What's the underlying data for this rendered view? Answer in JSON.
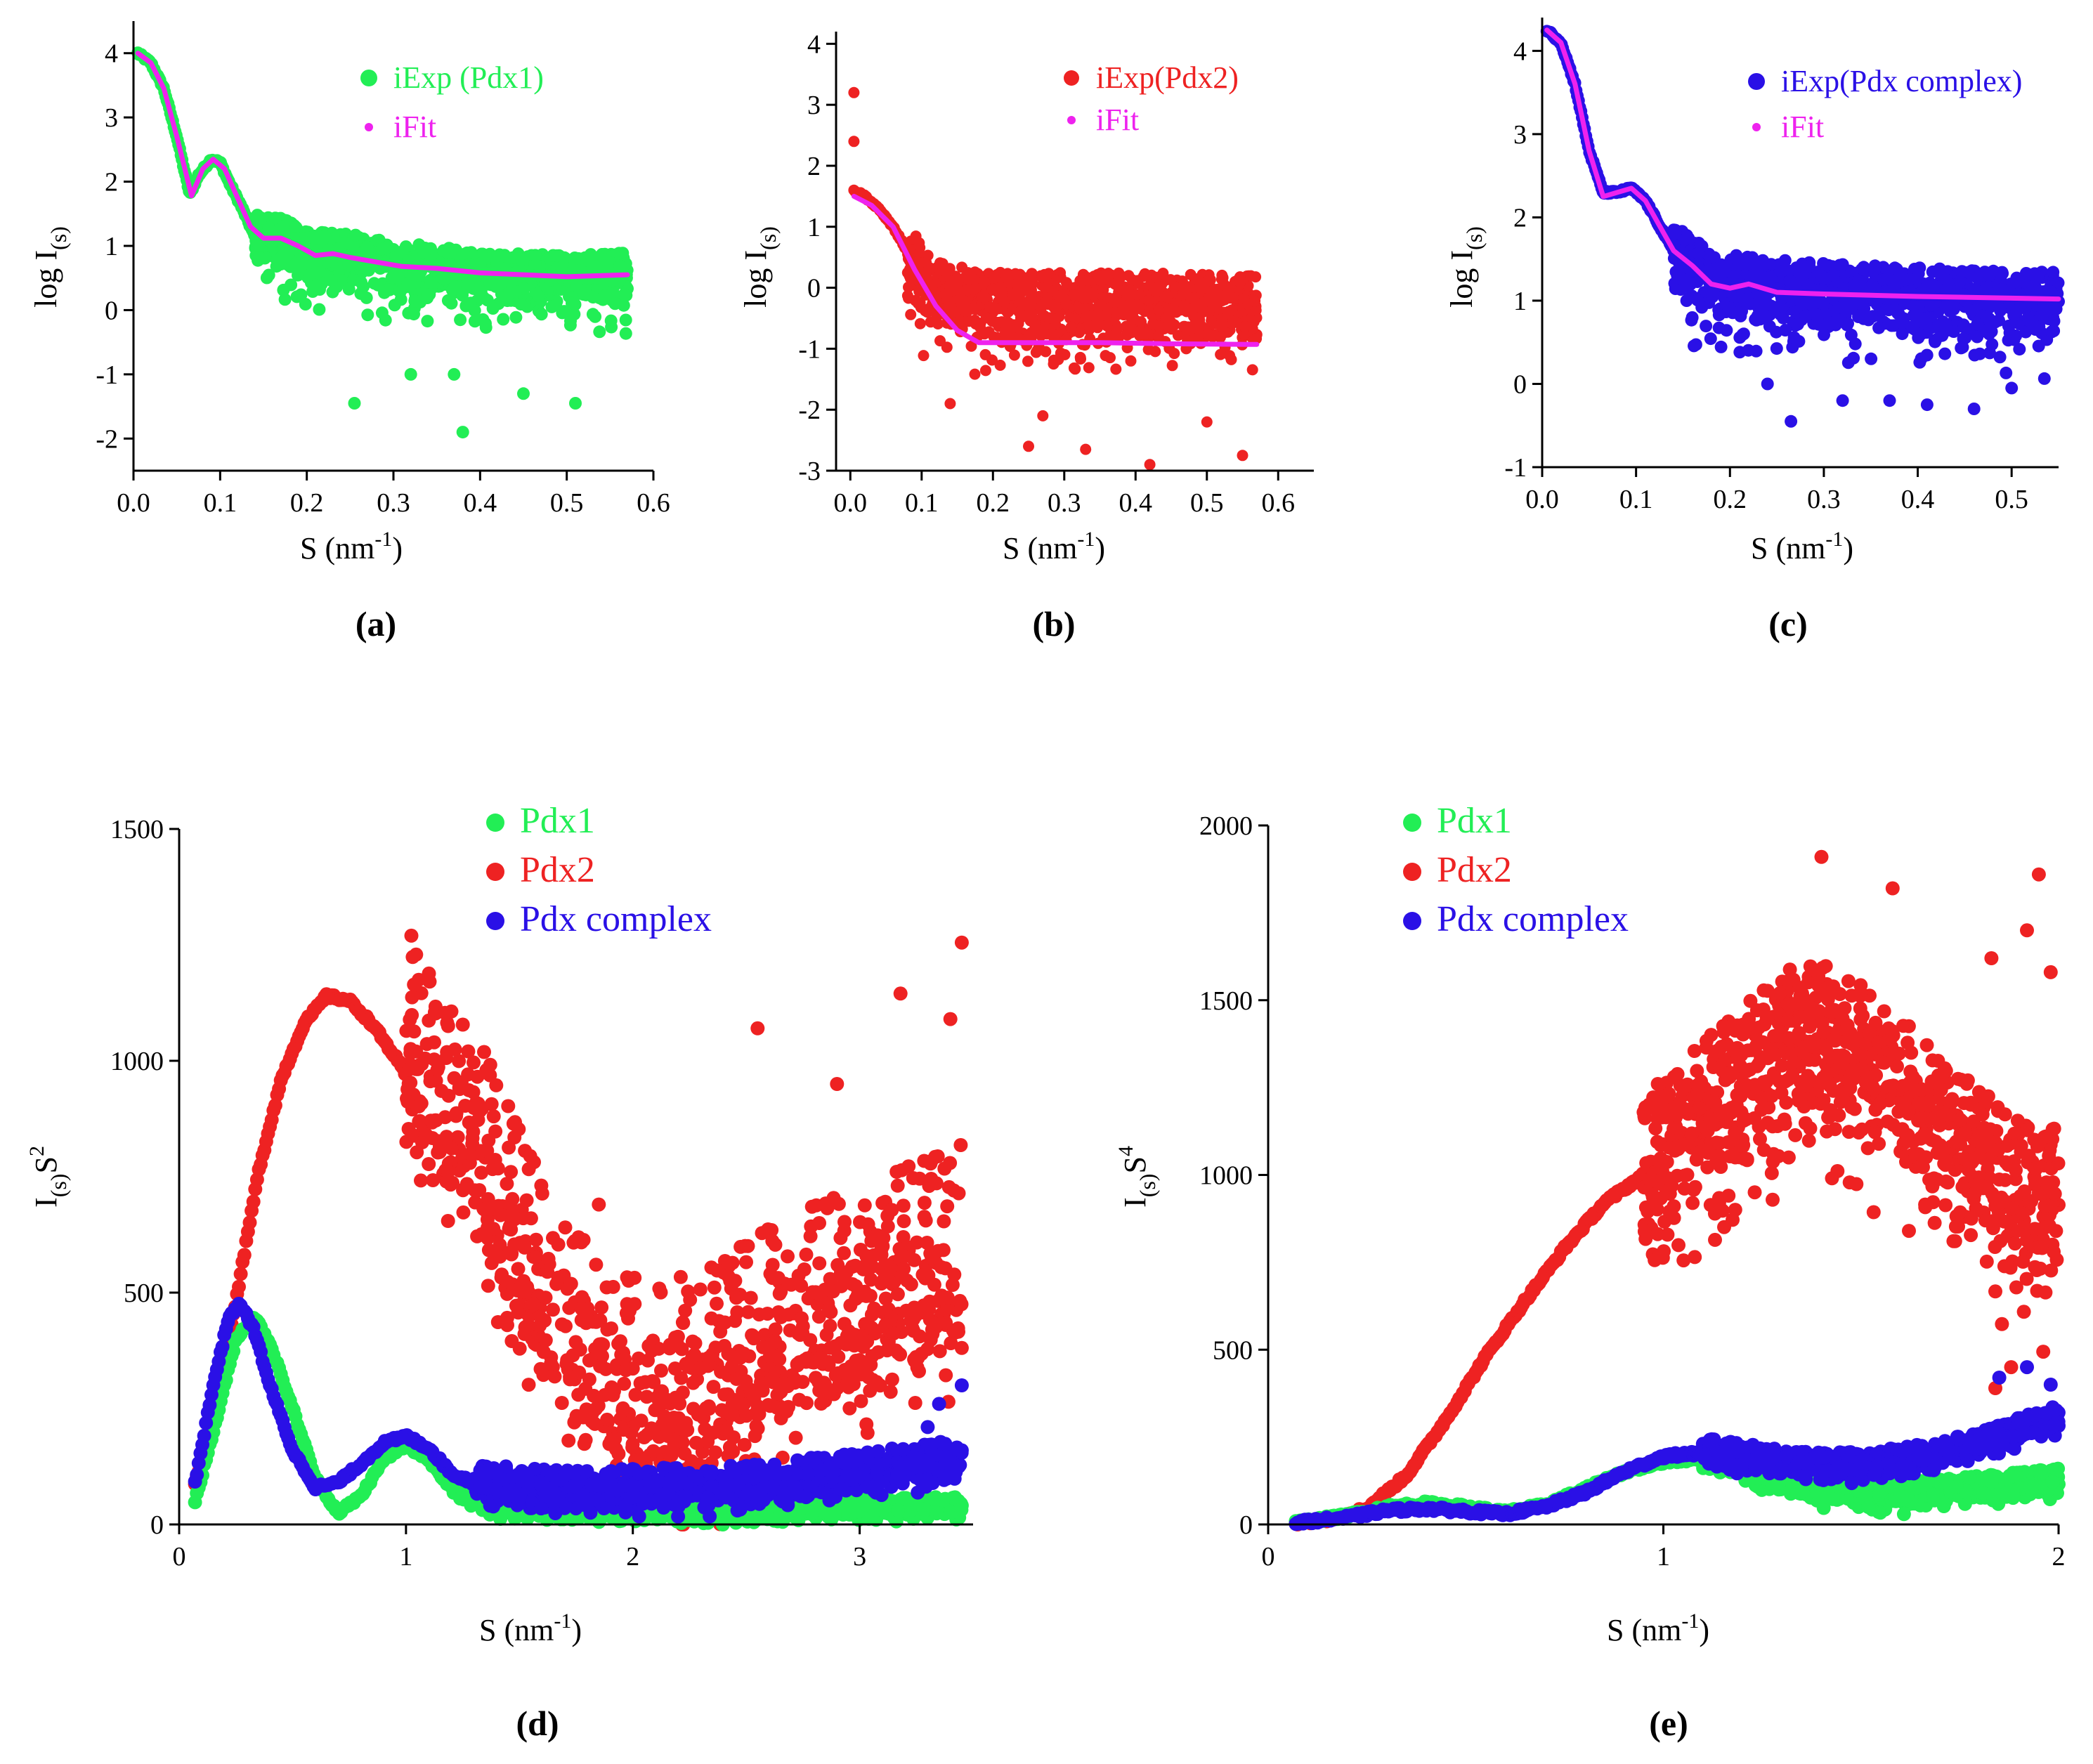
{
  "colors": {
    "pdx1": "#22ee55",
    "pdx2": "#ee2222",
    "complex": "#2a10e6",
    "fit": "#ee22ee"
  },
  "chart_data": [
    {
      "id": "a",
      "type": "scatter",
      "panel_label": "(a)",
      "xlabel": "S (nm",
      "xlabel_sup": "-1",
      "xlabel_close": ")",
      "ylabel": "log I",
      "ylabel_sub": "(s)",
      "xlim": [
        0.0,
        0.6
      ],
      "ylim": [
        -2.5,
        4.5
      ],
      "xticks": [
        0.0,
        0.1,
        0.2,
        0.3,
        0.4,
        0.5,
        0.6
      ],
      "xtick_labels": [
        "0.0",
        "0.1",
        "0.2",
        "0.3",
        "0.4",
        "0.5",
        "0.6"
      ],
      "yticks": [
        -2,
        -1,
        0,
        1,
        2,
        3,
        4
      ],
      "ytick_labels": [
        "-2",
        "-1",
        "0",
        "1",
        "2",
        "3",
        "4"
      ],
      "legend": [
        "iExp (Pdx1)",
        "iFit"
      ],
      "series": [
        {
          "name": "iExp (Pdx1)",
          "color_key": "pdx1",
          "kind": "points",
          "x": [
            0.005,
            0.02,
            0.035,
            0.05,
            0.065,
            0.075,
            0.09,
            0.1,
            0.11,
            0.125,
            0.14,
            0.155,
            0.17,
            0.185,
            0.2,
            0.25,
            0.3,
            0.35,
            0.4,
            0.45,
            0.5,
            0.57
          ],
          "y": [
            4.0,
            3.85,
            3.45,
            2.7,
            1.8,
            2.1,
            2.35,
            2.3,
            2.0,
            1.6,
            1.15,
            1.1,
            1.1,
            1.0,
            0.9,
            0.85,
            0.7,
            0.65,
            0.55,
            0.55,
            0.5,
            0.55
          ],
          "noise": {
            "x_start": 0.14,
            "x_end": 0.57,
            "spread_hi": 0.35,
            "spread_lo": 0.7,
            "outliers": [
              [
                0.255,
                -1.45
              ],
              [
                0.38,
                -1.9
              ],
              [
                0.51,
                -1.45
              ],
              [
                0.37,
                -1.0
              ],
              [
                0.45,
                -1.3
              ],
              [
                0.32,
                -1.0
              ]
            ]
          }
        },
        {
          "name": "iFit",
          "color_key": "fit",
          "kind": "line",
          "x": [
            0.005,
            0.02,
            0.035,
            0.05,
            0.067,
            0.08,
            0.092,
            0.105,
            0.12,
            0.135,
            0.15,
            0.17,
            0.19,
            0.21,
            0.23,
            0.25,
            0.28,
            0.31,
            0.35,
            0.4,
            0.45,
            0.5,
            0.57
          ],
          "y": [
            4.0,
            3.85,
            3.45,
            2.7,
            1.78,
            2.2,
            2.35,
            2.2,
            1.75,
            1.3,
            1.12,
            1.12,
            1.0,
            0.85,
            0.88,
            0.82,
            0.75,
            0.68,
            0.65,
            0.58,
            0.55,
            0.52,
            0.55
          ]
        }
      ]
    },
    {
      "id": "b",
      "type": "scatter",
      "panel_label": "(b)",
      "xlabel": "S (nm",
      "xlabel_sup": "-1",
      "xlabel_close": ")",
      "ylabel": "log I",
      "ylabel_sub": "(s)",
      "xlim": [
        -0.02,
        0.65
      ],
      "ylim": [
        -3.0,
        4.2
      ],
      "xticks": [
        0.0,
        0.1,
        0.2,
        0.3,
        0.4,
        0.5,
        0.6
      ],
      "xtick_labels": [
        "0.0",
        "0.1",
        "0.2",
        "0.3",
        "0.4",
        "0.5",
        "0.6"
      ],
      "yticks": [
        -3,
        -2,
        -1,
        0,
        1,
        2,
        3,
        4
      ],
      "ytick_labels": [
        "-3",
        "-2",
        "-1",
        "0",
        "1",
        "2",
        "3",
        "4"
      ],
      "legend": [
        "iExp(Pdx2)",
        "iFit"
      ],
      "series": [
        {
          "name": "iExp(Pdx2)",
          "color_key": "pdx2",
          "kind": "points",
          "x": [
            0.005,
            0.02,
            0.04,
            0.06,
            0.08,
            0.1,
            0.12,
            0.15,
            0.2,
            0.3,
            0.4,
            0.5,
            0.57
          ],
          "y": [
            1.6,
            1.5,
            1.3,
            1.0,
            0.6,
            0.1,
            -0.1,
            -0.2,
            -0.3,
            -0.3,
            -0.3,
            -0.3,
            -0.35
          ],
          "noise": {
            "x_start": 0.08,
            "x_end": 0.57,
            "spread_hi": 0.55,
            "spread_lo": 0.9,
            "outliers": [
              [
                0.005,
                3.2
              ],
              [
                0.005,
                2.4
              ],
              [
                0.25,
                -2.6
              ],
              [
                0.27,
                -2.1
              ],
              [
                0.33,
                -2.65
              ],
              [
                0.42,
                -2.9
              ],
              [
                0.55,
                -2.75
              ],
              [
                0.5,
                -2.2
              ],
              [
                0.14,
                -1.9
              ]
            ]
          }
        },
        {
          "name": "iFit",
          "color_key": "fit",
          "kind": "line",
          "x": [
            0.005,
            0.03,
            0.06,
            0.09,
            0.12,
            0.15,
            0.18,
            0.25,
            0.35,
            0.45,
            0.57
          ],
          "y": [
            1.5,
            1.35,
            1.0,
            0.3,
            -0.3,
            -0.7,
            -0.9,
            -0.9,
            -0.9,
            -0.92,
            -0.93
          ]
        }
      ]
    },
    {
      "id": "c",
      "type": "scatter",
      "panel_label": "(c)",
      "xlabel": "S (nm",
      "xlabel_sup": "-1",
      "xlabel_close": ")",
      "ylabel": "log I",
      "ylabel_sub": "(s)",
      "xlim": [
        0.0,
        0.55
      ],
      "ylim": [
        -1.0,
        4.4
      ],
      "xticks": [
        0.0,
        0.1,
        0.2,
        0.3,
        0.4,
        0.5
      ],
      "xtick_labels": [
        "0.0",
        "0.1",
        "0.2",
        "0.3",
        "0.4",
        "0.5"
      ],
      "yticks": [
        -1,
        0,
        1,
        2,
        3,
        4
      ],
      "ytick_labels": [
        "-1",
        "0",
        "1",
        "2",
        "3",
        "4"
      ],
      "legend": [
        "iExp(Pdx complex)",
        "iFit"
      ],
      "series": [
        {
          "name": "iExp(Pdx complex)",
          "color_key": "complex",
          "kind": "points",
          "x": [
            0.005,
            0.02,
            0.035,
            0.05,
            0.065,
            0.08,
            0.095,
            0.11,
            0.125,
            0.14,
            0.16,
            0.2,
            0.3,
            0.4,
            0.5,
            0.55
          ],
          "y": [
            4.25,
            4.1,
            3.6,
            2.8,
            2.3,
            2.3,
            2.35,
            2.2,
            1.9,
            1.6,
            1.4,
            1.2,
            1.1,
            1.05,
            1.0,
            1.0
          ],
          "noise": {
            "x_start": 0.14,
            "x_end": 0.55,
            "spread_hi": 0.35,
            "spread_lo": 0.7,
            "outliers": [
              [
                0.265,
                -0.45
              ],
              [
                0.32,
                -0.2
              ],
              [
                0.37,
                -0.2
              ],
              [
                0.41,
                -0.25
              ],
              [
                0.46,
                -0.3
              ],
              [
                0.5,
                -0.05
              ],
              [
                0.24,
                0.0
              ]
            ]
          }
        },
        {
          "name": "iFit",
          "color_key": "fit",
          "kind": "line",
          "x": [
            0.005,
            0.02,
            0.035,
            0.05,
            0.065,
            0.08,
            0.095,
            0.11,
            0.125,
            0.14,
            0.16,
            0.18,
            0.2,
            0.22,
            0.25,
            0.3,
            0.4,
            0.5,
            0.55
          ],
          "y": [
            4.25,
            4.1,
            3.6,
            2.8,
            2.25,
            2.3,
            2.35,
            2.2,
            1.9,
            1.6,
            1.42,
            1.2,
            1.15,
            1.2,
            1.1,
            1.08,
            1.05,
            1.03,
            1.02
          ]
        }
      ]
    },
    {
      "id": "d",
      "type": "scatter",
      "panel_label": "(d)",
      "xlabel": "S (nm",
      "xlabel_sup": "-1",
      "xlabel_close": ")",
      "ylabel": "I",
      "ylabel_sub": "(s)",
      "ylabel_tail": "S",
      "ylabel_sup": "2",
      "xlim": [
        0.0,
        3.5
      ],
      "ylim": [
        0,
        1500
      ],
      "xticks": [
        0,
        1,
        2,
        3
      ],
      "xtick_labels": [
        "0",
        "1",
        "2",
        "3"
      ],
      "yticks": [
        0,
        500,
        1000,
        1500
      ],
      "ytick_labels": [
        "0",
        "500",
        "1000",
        "1500"
      ],
      "legend": [
        "Pdx1",
        "Pdx2",
        "Pdx complex"
      ],
      "series": [
        {
          "name": "Pdx2",
          "color_key": "pdx2",
          "kind": "points",
          "x": [
            0.07,
            0.15,
            0.25,
            0.35,
            0.45,
            0.55,
            0.65,
            0.75,
            0.85,
            0.95,
            1.05,
            1.15,
            1.25,
            1.35,
            1.45,
            1.55,
            1.65,
            1.75,
            1.85,
            1.95,
            2.1,
            2.4,
            2.7,
            3.0,
            3.3,
            3.45
          ],
          "y": [
            90,
            230,
            480,
            760,
            960,
            1080,
            1140,
            1130,
            1080,
            1010,
            930,
            860,
            790,
            700,
            600,
            500,
            410,
            320,
            260,
            220,
            200,
            260,
            350,
            420,
            480,
            500
          ],
          "noise": {
            "x_start": 1.0,
            "x_end": 3.45,
            "spread_hi": 320,
            "spread_lo": 200,
            "outliers": [
              [
                3.45,
                1255
              ],
              [
                3.18,
                1145
              ],
              [
                2.55,
                1070
              ],
              [
                2.9,
                950
              ],
              [
                3.4,
                1090
              ],
              [
                1.85,
                690
              ]
            ]
          }
        },
        {
          "name": "Pdx1",
          "color_key": "pdx1",
          "kind": "points",
          "x": [
            0.07,
            0.15,
            0.25,
            0.33,
            0.4,
            0.5,
            0.6,
            0.7,
            0.8,
            0.9,
            1.0,
            1.1,
            1.2,
            1.35,
            1.5,
            1.7,
            2.0,
            2.5,
            3.0,
            3.45
          ],
          "y": [
            50,
            200,
            400,
            450,
            390,
            250,
            100,
            25,
            60,
            140,
            170,
            140,
            80,
            45,
            30,
            25,
            25,
            25,
            30,
            35
          ],
          "noise": {
            "x_start": 1.2,
            "x_end": 3.45,
            "spread_hi": 25,
            "spread_lo": 20,
            "outliers": []
          }
        },
        {
          "name": "Pdx complex",
          "color_key": "complex",
          "kind": "points",
          "x": [
            0.07,
            0.15,
            0.22,
            0.27,
            0.33,
            0.4,
            0.5,
            0.6,
            0.7,
            0.8,
            0.9,
            1.0,
            1.1,
            1.2,
            1.35,
            1.5,
            1.7,
            2.0,
            2.5,
            3.0,
            3.45
          ],
          "y": [
            90,
            300,
            450,
            475,
            420,
            300,
            160,
            80,
            90,
            130,
            175,
            190,
            165,
            110,
            80,
            70,
            65,
            65,
            75,
            100,
            130
          ],
          "noise": {
            "x_start": 1.3,
            "x_end": 3.45,
            "spread_hi": 55,
            "spread_lo": 40,
            "outliers": [
              [
                3.45,
                300
              ],
              [
                3.35,
                260
              ],
              [
                3.3,
                210
              ]
            ]
          }
        }
      ]
    },
    {
      "id": "e",
      "type": "scatter",
      "panel_label": "(e)",
      "xlabel": "S (nm",
      "xlabel_sup": "-1",
      "xlabel_close": ")",
      "ylabel": "I",
      "ylabel_sub": "(s)",
      "ylabel_tail": "S",
      "ylabel_sup": "4",
      "xlim": [
        0.0,
        2.0
      ],
      "ylim": [
        0,
        2000
      ],
      "xticks": [
        0,
        1,
        2
      ],
      "xtick_labels": [
        "0",
        "1",
        "2"
      ],
      "yticks": [
        0,
        500,
        1000,
        1500,
        2000
      ],
      "ytick_labels": [
        "0",
        "500",
        "1000",
        "1500",
        "2000"
      ],
      "legend": [
        "Pdx1",
        "Pdx2",
        "Pdx complex"
      ],
      "series": [
        {
          "name": "Pdx2",
          "color_key": "pdx2",
          "kind": "points",
          "x": [
            0.07,
            0.15,
            0.25,
            0.35,
            0.45,
            0.55,
            0.65,
            0.75,
            0.85,
            0.95,
            1.05,
            1.15,
            1.25,
            1.35,
            1.45,
            1.55,
            1.65,
            1.75,
            1.85,
            1.95,
            2.0
          ],
          "y": [
            5,
            15,
            45,
            140,
            300,
            480,
            640,
            790,
            920,
            1000,
            1080,
            1180,
            1280,
            1370,
            1340,
            1250,
            1150,
            1050,
            950,
            900,
            880
          ],
          "noise": {
            "x_start": 0.95,
            "x_end": 2.0,
            "spread_hi": 250,
            "spread_lo": 300,
            "outliers": [
              [
                1.4,
                1910
              ],
              [
                1.95,
                1860
              ],
              [
                1.58,
                1820
              ],
              [
                1.92,
                1700
              ],
              [
                1.98,
                1580
              ],
              [
                1.83,
                1620
              ],
              [
                1.88,
                450
              ],
              [
                1.84,
                390
              ]
            ]
          }
        },
        {
          "name": "Pdx1",
          "color_key": "pdx1",
          "kind": "points",
          "x": [
            0.07,
            0.2,
            0.3,
            0.4,
            0.5,
            0.6,
            0.7,
            0.8,
            0.9,
            1.0,
            1.1,
            1.2,
            1.3,
            1.4,
            1.5,
            1.6,
            1.7,
            1.8,
            1.9,
            2.0
          ],
          "y": [
            5,
            25,
            50,
            60,
            50,
            35,
            55,
            100,
            150,
            180,
            190,
            160,
            120,
            90,
            80,
            80,
            90,
            100,
            110,
            120
          ],
          "noise": {
            "x_start": 1.1,
            "x_end": 2.0,
            "spread_hi": 40,
            "spread_lo": 40,
            "outliers": []
          }
        },
        {
          "name": "Pdx complex",
          "color_key": "complex",
          "kind": "points",
          "x": [
            0.07,
            0.2,
            0.3,
            0.4,
            0.5,
            0.6,
            0.7,
            0.8,
            0.9,
            1.0,
            1.1,
            1.2,
            1.3,
            1.4,
            1.5,
            1.6,
            1.7,
            1.8,
            1.9,
            2.0
          ],
          "y": [
            5,
            20,
            40,
            45,
            38,
            30,
            50,
            90,
            150,
            195,
            205,
            190,
            170,
            160,
            165,
            175,
            195,
            220,
            260,
            300
          ],
          "noise": {
            "x_start": 1.1,
            "x_end": 2.0,
            "spread_hi": 45,
            "spread_lo": 35,
            "outliers": [
              [
                1.85,
                420
              ],
              [
                1.92,
                450
              ],
              [
                1.98,
                400
              ]
            ]
          }
        }
      ]
    }
  ]
}
